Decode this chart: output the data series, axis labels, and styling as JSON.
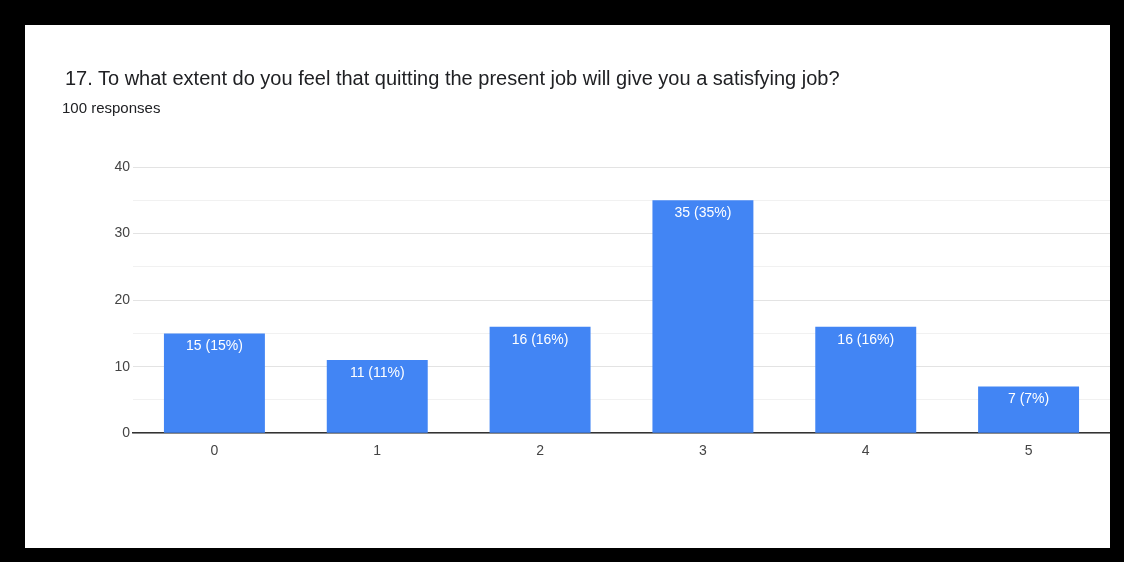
{
  "chart_data": {
    "type": "bar",
    "title": "17. To what extent do you feel that quitting the present job will give you a satisfying job?",
    "subtitle": "100 responses",
    "categories": [
      "0",
      "1",
      "2",
      "3",
      "4",
      "5"
    ],
    "values": [
      15,
      11,
      16,
      35,
      16,
      7
    ],
    "value_labels": [
      "15 (15%)",
      "11 (11%)",
      "16 (16%)",
      "35 (35%)",
      "16 (16%)",
      "7 (7%)"
    ],
    "color": "#4285f4",
    "ylim": [
      0,
      40
    ],
    "yticks": [
      0,
      {
        "value": 5,
        "label": null
      },
      10,
      {
        "value": 15,
        "label": null
      },
      20,
      {
        "value": 25,
        "label": null
      },
      30,
      {
        "value": 35,
        "label": null
      },
      40
    ],
    "grid": "y"
  }
}
